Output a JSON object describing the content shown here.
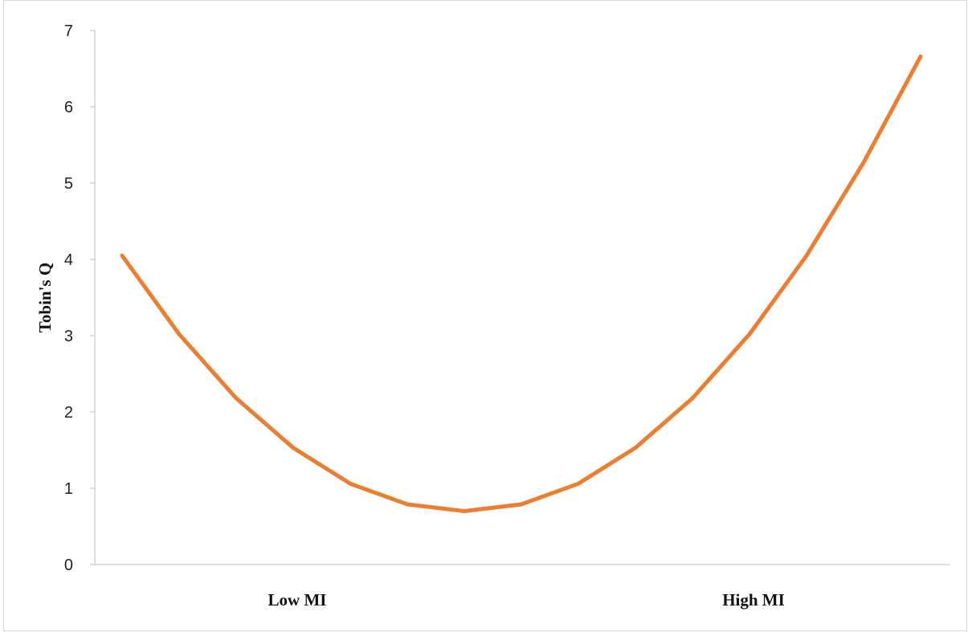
{
  "chart_data": {
    "type": "line",
    "title": "",
    "xlabel": "",
    "ylabel": "Tobin's Q",
    "ylim": [
      0,
      7
    ],
    "yticks": [
      "0",
      "1",
      "2",
      "3",
      "4",
      "5",
      "6",
      "7"
    ],
    "x_labels": [
      {
        "text": "Low MI",
        "index": 3
      },
      {
        "text": "High MI",
        "index": 11
      }
    ],
    "grid": false,
    "legend": "none",
    "series": [
      {
        "color": "#ed7d31",
        "values": [
          4.05,
          3.02,
          2.18,
          1.53,
          1.06,
          0.79,
          0.7,
          0.79,
          1.06,
          1.53,
          2.18,
          3.02,
          4.05,
          5.27,
          6.66
        ]
      }
    ]
  }
}
